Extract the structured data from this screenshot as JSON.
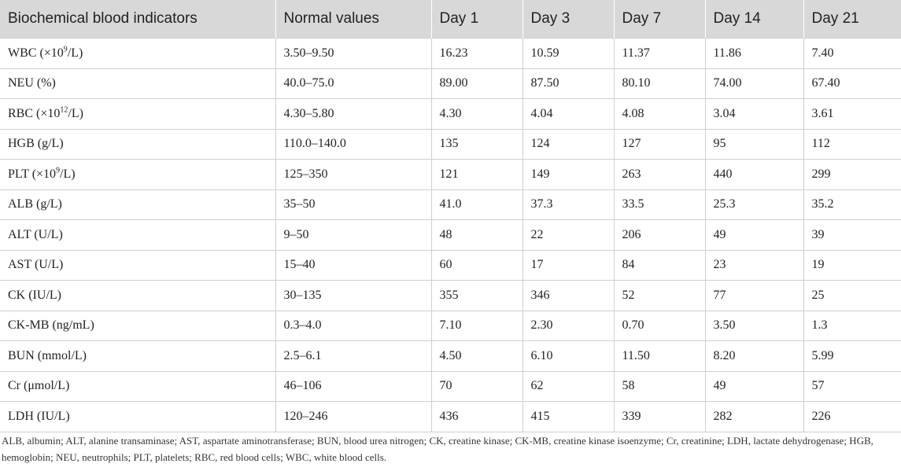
{
  "table": {
    "headers": [
      "Biochemical blood indicators",
      "Normal values",
      "Day 1",
      "Day 3",
      "Day 7",
      "Day 14",
      "Day 21"
    ],
    "rows": [
      {
        "label": "WBC (×10",
        "sup": "9",
        "unit": "/L)",
        "normal": "3.50–9.50",
        "days": [
          "16.23",
          "10.59",
          "11.37",
          "11.86",
          "7.40"
        ]
      },
      {
        "label": "NEU (%)",
        "sup": "",
        "unit": "",
        "normal": "40.0–75.0",
        "days": [
          "89.00",
          "87.50",
          "80.10",
          "74.00",
          "67.40"
        ]
      },
      {
        "label": "RBC (×10",
        "sup": "12",
        "unit": "/L)",
        "normal": "4.30–5.80",
        "days": [
          "4.30",
          "4.04",
          "4.08",
          "3.04",
          "3.61"
        ]
      },
      {
        "label": "HGB (g/L)",
        "sup": "",
        "unit": "",
        "normal": "110.0–140.0",
        "days": [
          "135",
          "124",
          "127",
          "95",
          "112"
        ]
      },
      {
        "label": "PLT (×10",
        "sup": "9",
        "unit": "/L)",
        "normal": "125–350",
        "days": [
          "121",
          "149",
          "263",
          "440",
          "299"
        ]
      },
      {
        "label": "ALB (g/L)",
        "sup": "",
        "unit": "",
        "normal": "35–50",
        "days": [
          "41.0",
          "37.3",
          "33.5",
          "25.3",
          "35.2"
        ]
      },
      {
        "label": "ALT (U/L)",
        "sup": "",
        "unit": "",
        "normal": "9–50",
        "days": [
          "48",
          "22",
          "206",
          "49",
          "39"
        ]
      },
      {
        "label": "AST (U/L)",
        "sup": "",
        "unit": "",
        "normal": "15–40",
        "days": [
          "60",
          "17",
          "84",
          "23",
          "19"
        ]
      },
      {
        "label": "CK (IU/L)",
        "sup": "",
        "unit": "",
        "normal": "30–135",
        "days": [
          "355",
          "346",
          "52",
          "77",
          "25"
        ]
      },
      {
        "label": "CK-MB (ng/mL)",
        "sup": "",
        "unit": "",
        "normal": "0.3–4.0",
        "days": [
          "7.10",
          "2.30",
          "0.70",
          "3.50",
          "1.3"
        ]
      },
      {
        "label": "BUN (mmol/L)",
        "sup": "",
        "unit": "",
        "normal": "2.5–6.1",
        "days": [
          "4.50",
          "6.10",
          "11.50",
          "8.20",
          "5.99"
        ]
      },
      {
        "label": "Cr (μmol/L)",
        "sup": "",
        "unit": "",
        "normal": "46–106",
        "days": [
          "70",
          "62",
          "58",
          "49",
          "57"
        ]
      },
      {
        "label": "LDH (IU/L)",
        "sup": "",
        "unit": "",
        "normal": "120–246",
        "days": [
          "436",
          "415",
          "339",
          "282",
          "226"
        ]
      }
    ]
  },
  "footnote": "ALB, albumin; ALT, alanine transaminase; AST, aspartate aminotransferase; BUN, blood urea nitrogen; CK, creatine kinase; CK-MB, creatine kinase isoenzyme; Cr, creatinine; LDH, lactate dehydrogenase; HGB, hemoglobin; NEU, neutrophils; PLT, platelets; RBC, red blood cells; WBC, white blood cells."
}
